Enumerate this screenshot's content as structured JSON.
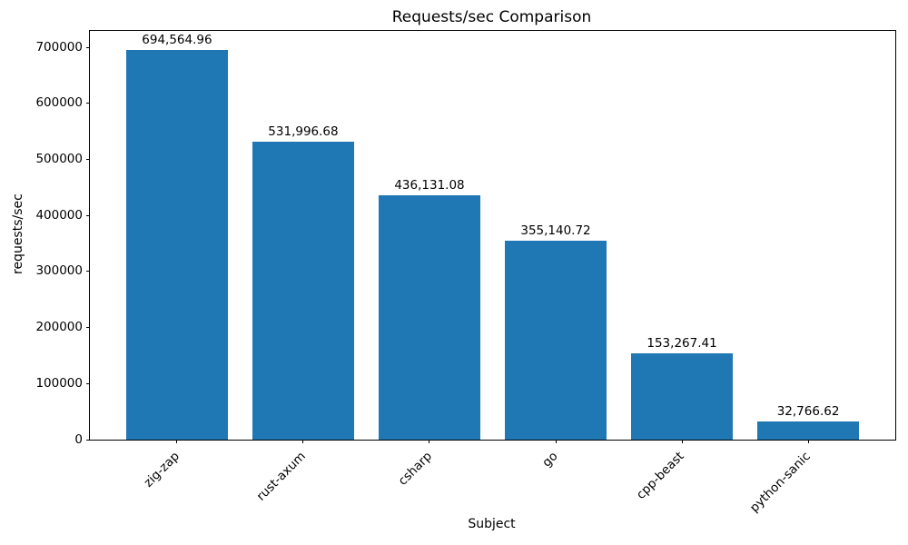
{
  "chart_data": {
    "type": "bar",
    "title": "Requests/sec Comparison",
    "xlabel": "Subject",
    "ylabel": "requests/sec",
    "categories": [
      "zig-zap",
      "rust-axum",
      "csharp",
      "go",
      "cpp-beast",
      "python-sanic"
    ],
    "values": [
      694564.96,
      531996.68,
      436131.08,
      355140.72,
      153267.41,
      32766.62
    ],
    "value_labels": [
      "694,564.96",
      "531,996.68",
      "436,131.08",
      "355,140.72",
      "153,267.41",
      "32,766.62"
    ],
    "yticks": [
      0,
      100000,
      200000,
      300000,
      400000,
      500000,
      600000,
      700000
    ],
    "ytick_labels": [
      "0",
      "100000",
      "200000",
      "300000",
      "400000",
      "500000",
      "600000",
      "700000"
    ],
    "ylim": [
      0,
      729293
    ],
    "xlim": [
      -0.69,
      5.69
    ],
    "bar_width": 0.8,
    "bar_color": "#1f77b4",
    "grid": false,
    "x_tick_rotation": 45
  }
}
